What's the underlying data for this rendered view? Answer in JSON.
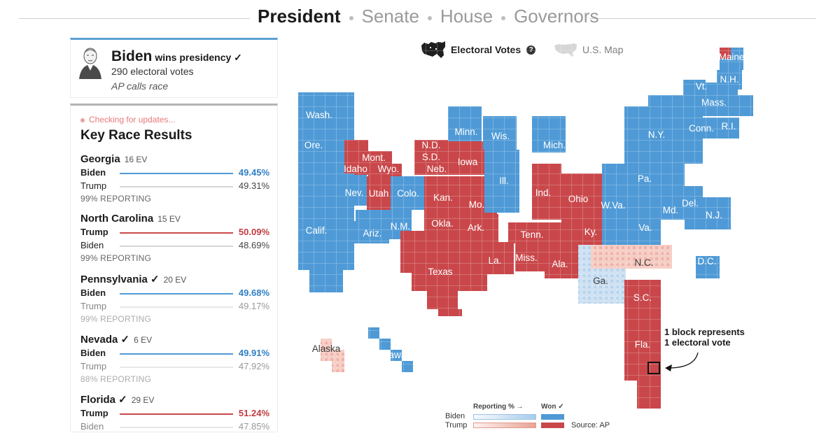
{
  "nav": {
    "tabs": [
      {
        "label": "President",
        "active": true
      },
      {
        "label": "Senate",
        "active": false
      },
      {
        "label": "House",
        "active": false
      },
      {
        "label": "Governors",
        "active": false
      }
    ]
  },
  "winner": {
    "name": "Biden",
    "headline": "wins presidency ✓",
    "electoral_votes": "290 electoral votes",
    "call": "AP calls race"
  },
  "races_panel": {
    "status": "Checking for updates...",
    "title": "Key Race Results",
    "races": [
      {
        "state": "Georgia",
        "ev": "16 EV",
        "reporting": "99% REPORTING",
        "candidates": [
          {
            "name": "Biden",
            "pct": "49.45%",
            "leader": true,
            "party": "dem"
          },
          {
            "name": "Trump",
            "pct": "49.31%",
            "leader": false,
            "party": "rep"
          }
        ]
      },
      {
        "state": "North Carolina",
        "ev": "15 EV",
        "reporting": "99% REPORTING",
        "candidates": [
          {
            "name": "Trump",
            "pct": "50.09%",
            "leader": true,
            "party": "rep"
          },
          {
            "name": "Biden",
            "pct": "48.69%",
            "leader": false,
            "party": "dem"
          }
        ]
      },
      {
        "state": "Pennsylvania ✓",
        "ev": "20 EV",
        "reporting": "99% REPORTING",
        "candidates": [
          {
            "name": "Biden",
            "pct": "49.68%",
            "leader": true,
            "party": "dem"
          },
          {
            "name": "Trump",
            "pct": "49.17%",
            "leader": false,
            "party": "rep"
          }
        ]
      },
      {
        "state": "Nevada ✓",
        "ev": "6 EV",
        "reporting": "88% REPORTING",
        "candidates": [
          {
            "name": "Biden",
            "pct": "49.91%",
            "leader": true,
            "party": "dem"
          },
          {
            "name": "Trump",
            "pct": "47.92%",
            "leader": false,
            "party": "rep"
          }
        ]
      },
      {
        "state": "Florida ✓",
        "ev": "29 EV",
        "reporting": "",
        "candidates": [
          {
            "name": "Trump",
            "pct": "51.24%",
            "leader": true,
            "party": "rep"
          },
          {
            "name": "Biden",
            "pct": "47.85%",
            "leader": false,
            "party": "dem"
          }
        ]
      }
    ]
  },
  "map_toggle": {
    "options": [
      {
        "label": "Electoral Votes",
        "icon": "cartogram-icon",
        "selected": true
      },
      {
        "label": "U.S. Map",
        "icon": "us-map-icon",
        "selected": false
      }
    ],
    "help_icon": "help-icon"
  },
  "map": {
    "annotation_line1": "1 block represents",
    "annotation_line2": "1 electoral vote",
    "colors": {
      "dem": "#4f9ad6",
      "rep": "#c9474a",
      "dem_lead": "#cfe2f3",
      "rep_lead": "#f3c4bb"
    },
    "states": [
      {
        "label": "Wash.",
        "color": "dem"
      },
      {
        "label": "Ore.",
        "color": "dem"
      },
      {
        "label": "Calif.",
        "color": "dem"
      },
      {
        "label": "Nev.",
        "color": "dem"
      },
      {
        "label": "Idaho",
        "color": "rep"
      },
      {
        "label": "Mont.",
        "color": "rep"
      },
      {
        "label": "Wyo.",
        "color": "rep"
      },
      {
        "label": "Utah",
        "color": "rep"
      },
      {
        "label": "Ariz.",
        "color": "dem"
      },
      {
        "label": "Colo.",
        "color": "dem"
      },
      {
        "label": "N.M.",
        "color": "dem"
      },
      {
        "label": "N.D.",
        "color": "rep"
      },
      {
        "label": "S.D.",
        "color": "rep"
      },
      {
        "label": "Neb.",
        "color": "rep"
      },
      {
        "label": "Kan.",
        "color": "rep"
      },
      {
        "label": "Okla.",
        "color": "rep"
      },
      {
        "label": "Texas",
        "color": "rep"
      },
      {
        "label": "Minn.",
        "color": "dem"
      },
      {
        "label": "Iowa",
        "color": "rep"
      },
      {
        "label": "Mo.",
        "color": "rep"
      },
      {
        "label": "Ark.",
        "color": "rep"
      },
      {
        "label": "La.",
        "color": "rep"
      },
      {
        "label": "Wis.",
        "color": "dem"
      },
      {
        "label": "Ill.",
        "color": "dem"
      },
      {
        "label": "Mich.",
        "color": "dem"
      },
      {
        "label": "Ind.",
        "color": "rep"
      },
      {
        "label": "Ohio",
        "color": "rep"
      },
      {
        "label": "Ky.",
        "color": "rep"
      },
      {
        "label": "Tenn.",
        "color": "rep"
      },
      {
        "label": "Miss.",
        "color": "rep"
      },
      {
        "label": "Ala.",
        "color": "rep"
      },
      {
        "label": "Ga.",
        "color": "dem_lead"
      },
      {
        "label": "Fla.",
        "color": "rep"
      },
      {
        "label": "S.C.",
        "color": "rep"
      },
      {
        "label": "N.C.",
        "color": "rep_lead"
      },
      {
        "label": "Va.",
        "color": "dem"
      },
      {
        "label": "W.Va.",
        "color": "rep"
      },
      {
        "label": "Pa.",
        "color": "dem"
      },
      {
        "label": "N.Y.",
        "color": "dem"
      },
      {
        "label": "Md.",
        "color": "dem"
      },
      {
        "label": "Del.",
        "color": "dem"
      },
      {
        "label": "N.J.",
        "color": "dem"
      },
      {
        "label": "Conn.",
        "color": "dem"
      },
      {
        "label": "R.I.",
        "color": "dem"
      },
      {
        "label": "Mass.",
        "color": "dem"
      },
      {
        "label": "Vt.",
        "color": "dem"
      },
      {
        "label": "N.H.",
        "color": "dem"
      },
      {
        "label": "Maine",
        "color": "dem"
      },
      {
        "label": "D.C.",
        "color": "dem"
      },
      {
        "label": "Alaska",
        "color": "rep_lead"
      },
      {
        "label": "Hawaii",
        "color": "dem"
      }
    ]
  },
  "legend": {
    "reporting_header": "Reporting % →",
    "won_header": "Won ✓",
    "rows": [
      {
        "name": "Biden",
        "party": "dem"
      },
      {
        "name": "Trump",
        "party": "rep"
      }
    ],
    "source": "Source: AP"
  }
}
